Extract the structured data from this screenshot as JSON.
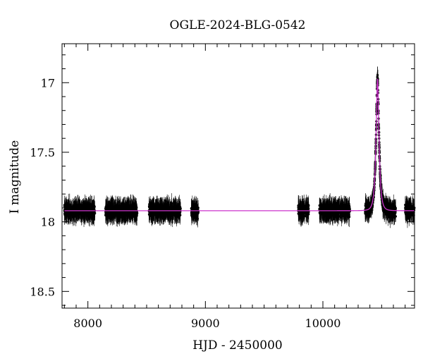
{
  "chart_data": {
    "type": "scatter",
    "title": "OGLE-2024-BLG-0542",
    "xlabel": "HJD - 2450000",
    "ylabel": "I magnitude",
    "xlim": [
      7780,
      10780
    ],
    "ylim": [
      18.62,
      16.72
    ],
    "y_inverted": true,
    "x_ticks": [
      8000,
      9000,
      10000
    ],
    "y_ticks": [
      17,
      17.5,
      18,
      18.5
    ],
    "x_tick_labels": [
      "8000",
      "9000",
      "10000"
    ],
    "y_tick_labels": [
      "17",
      "17.5",
      "18",
      "18.5"
    ],
    "grid": false,
    "baseline_mag": 17.92,
    "observing_seasons": [
      {
        "start": 7800,
        "end": 8060
      },
      {
        "start": 8150,
        "end": 8420
      },
      {
        "start": 8520,
        "end": 8790
      },
      {
        "start": 8880,
        "end": 8940
      },
      {
        "start": 9790,
        "end": 9880
      },
      {
        "start": 9970,
        "end": 10230
      },
      {
        "start": 10360,
        "end": 10620
      },
      {
        "start": 10700,
        "end": 10780
      }
    ],
    "event": {
      "t0": 10465,
      "peak_mag": 16.97,
      "baseline_mag": 17.92,
      "timescale_days": 22
    },
    "series": [
      {
        "kind": "observations",
        "color": "#000000"
      },
      {
        "kind": "model",
        "color": "#cc33cc"
      }
    ],
    "colors": {
      "points": "#000000",
      "model": "#cc33cc",
      "axes": "#000000",
      "background": "#ffffff"
    }
  }
}
